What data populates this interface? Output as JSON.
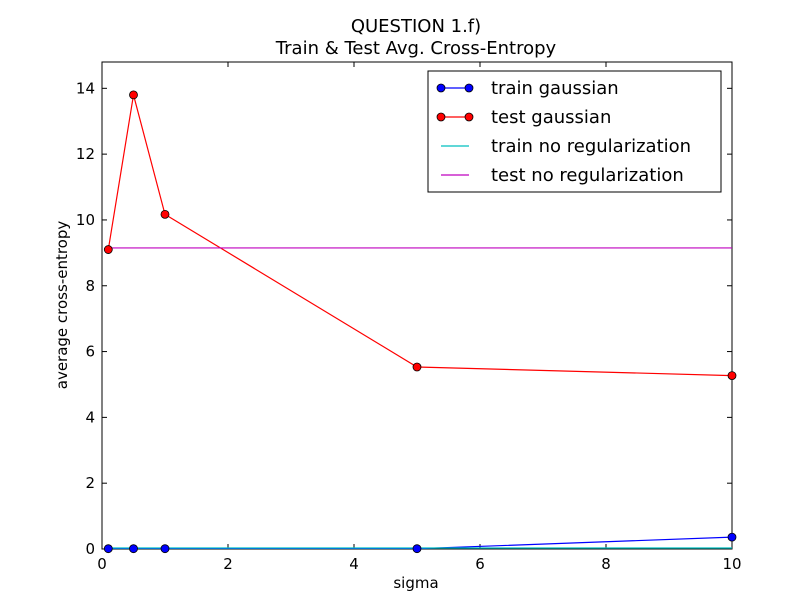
{
  "chart_data": {
    "type": "line",
    "title": "QUESTION 1.f)",
    "subtitle": "Train & Test Avg. Cross-Entropy",
    "xlabel": "sigma",
    "ylabel": "average cross-entropy",
    "xlim": [
      0,
      10
    ],
    "ylim": [
      0,
      14.8
    ],
    "xticks": [
      0,
      2,
      4,
      6,
      8,
      10
    ],
    "yticks": [
      0,
      2,
      4,
      6,
      8,
      10,
      12,
      14
    ],
    "grid": false,
    "legend_position": "top-right",
    "series": [
      {
        "name": "train gaussian",
        "color": "#0000ff",
        "marker": true,
        "x": [
          0.1,
          0.5,
          1,
          5,
          10
        ],
        "values": [
          0.01,
          0.01,
          0.01,
          0.01,
          0.36
        ]
      },
      {
        "name": "test gaussian",
        "color": "#ff0000",
        "marker": true,
        "x": [
          0.1,
          0.5,
          1,
          5,
          10
        ],
        "values": [
          9.1,
          13.8,
          10.17,
          5.53,
          5.27
        ]
      },
      {
        "name": "train no regularization",
        "color": "#00bfbf",
        "marker": false,
        "x": [
          0.1,
          10
        ],
        "values": [
          0.03,
          0.03
        ]
      },
      {
        "name": "test no regularization",
        "color": "#bf00bf",
        "marker": false,
        "x": [
          0.1,
          10
        ],
        "values": [
          9.15,
          9.15
        ]
      }
    ]
  }
}
